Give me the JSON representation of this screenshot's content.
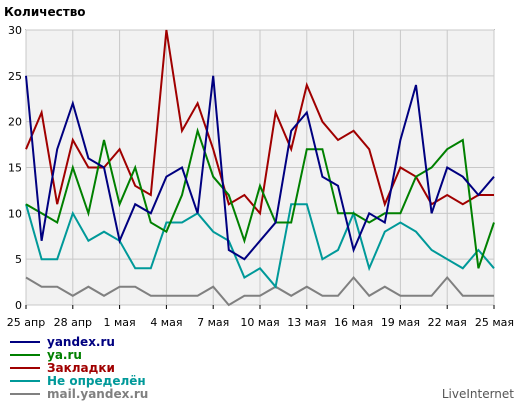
{
  "chart_data": {
    "type": "line",
    "title": "Количество",
    "ylim": [
      0,
      30
    ],
    "yticks": [
      0,
      5,
      10,
      15,
      20,
      25,
      30
    ],
    "grid": true,
    "legend_position": "bottom-left",
    "x_tick_labels": [
      "25 апр",
      "28 апр",
      "1 мая",
      "4 мая",
      "7 мая",
      "10 мая",
      "13 мая",
      "16 мая",
      "19 мая",
      "22 мая",
      "25 мая"
    ],
    "x_tick_every": 3,
    "series": [
      {
        "name": "yandex.ru",
        "color": "#000080",
        "values": [
          25,
          7,
          17,
          22,
          16,
          15,
          7,
          11,
          10,
          14,
          15,
          10,
          25,
          6,
          5,
          7,
          9,
          19,
          21,
          14,
          13,
          6,
          10,
          9,
          18,
          24,
          10,
          15,
          14,
          12,
          14
        ]
      },
      {
        "name": "ya.ru",
        "color": "#008000",
        "values": [
          11,
          10,
          9,
          15,
          10,
          18,
          11,
          15,
          9,
          8,
          12,
          19,
          14,
          12,
          7,
          13,
          9,
          9,
          17,
          17,
          10,
          10,
          9,
          10,
          10,
          14,
          15,
          17,
          18,
          4,
          9
        ]
      },
      {
        "name": "Закладки",
        "color": "#a00000",
        "values": [
          17,
          21,
          11,
          18,
          15,
          15,
          17,
          13,
          12,
          30,
          19,
          22,
          17,
          11,
          12,
          10,
          21,
          17,
          24,
          20,
          18,
          19,
          17,
          11,
          15,
          14,
          11,
          12,
          11,
          12,
          12
        ]
      },
      {
        "name": "Не определён",
        "color": "#009999",
        "values": [
          11,
          5,
          5,
          10,
          7,
          8,
          7,
          4,
          4,
          9,
          9,
          10,
          8,
          7,
          3,
          4,
          2,
          11,
          11,
          5,
          6,
          10,
          4,
          8,
          9,
          8,
          6,
          5,
          4,
          6,
          4
        ]
      },
      {
        "name": "mail.yandex.ru",
        "color": "#808080",
        "values": [
          3,
          2,
          2,
          1,
          2,
          1,
          2,
          2,
          1,
          1,
          1,
          1,
          2,
          0,
          1,
          1,
          2,
          1,
          2,
          1,
          1,
          3,
          1,
          2,
          1,
          1,
          1,
          3,
          1,
          1,
          1
        ]
      }
    ]
  },
  "footer": {
    "brand": "LiveInternet"
  }
}
